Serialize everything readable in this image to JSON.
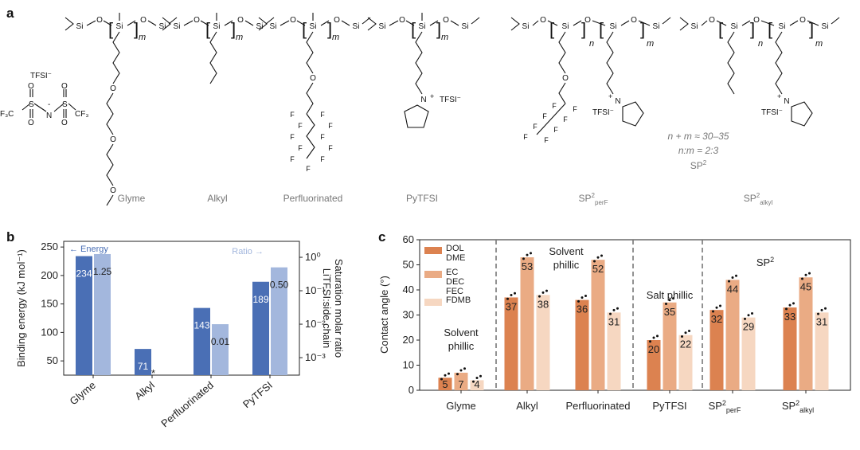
{
  "panel_a": {
    "letter": "a",
    "anion_label": "TFSI⁻",
    "anion_cf3_left": "F₃C",
    "anion_cf3_right": "CF₃",
    "anion_s": "S",
    "anion_n": "N",
    "anion_o": "O",
    "anion_minus": "-",
    "atom_si": "Si",
    "atom_o": "O",
    "atom_f": "F",
    "atom_n": "N",
    "plus": "+",
    "tfsi": "TFSI⁻",
    "sub_m": "m",
    "sub_n": "n",
    "structures": [
      "Glyme",
      "Alkyl",
      "Perfluorinated",
      "PyTFSI"
    ],
    "copolymer_perF_base": "SP",
    "copolymer_perF_sup": "2",
    "copolymer_perF_sub": "perF",
    "copolymer_alkyl_base": "SP",
    "copolymer_alkyl_sup": "2",
    "copolymer_alkyl_sub": "alkyl",
    "note_line1": "n + m ≈ 30–35",
    "note_line2": "n:m = 2:3",
    "note_line3_base": "SP",
    "note_line3_sup": "2"
  },
  "chart_data": [
    {
      "panel": "b",
      "type": "bar",
      "categories": [
        "Glyme",
        "Alkyl",
        "Perfluorinated",
        "PyTFSI"
      ],
      "ylabel": "Binding energy (kJ mol⁻¹)",
      "ylabel_right_line1": "Saturation molar ratio",
      "ylabel_right_line2": "LiTFSI:side chain",
      "ylim": [
        25,
        260
      ],
      "yticks": [
        "50",
        "100",
        "150",
        "200",
        "250"
      ],
      "y2_scale": "log",
      "y2lim": [
        0.0003,
        3.0
      ],
      "y2ticks": [
        "10⁻³",
        "10⁻²",
        "10⁻¹",
        "10⁰"
      ],
      "energy_arrow": "← Energy",
      "ratio_arrow": "Ratio →",
      "star": "*",
      "series": [
        {
          "name": "Energy",
          "axis": "left",
          "color": "#4a6fb5",
          "values": [
            234,
            71,
            143,
            189
          ],
          "labels": [
            "234",
            "71",
            "143",
            "189"
          ]
        },
        {
          "name": "Ratio",
          "axis": "right",
          "color": "#a3b7dd",
          "values": [
            1.25,
            null,
            0.01,
            0.5
          ],
          "labels": [
            "1.25",
            "",
            "0.01",
            "0.50"
          ]
        }
      ]
    },
    {
      "panel": "c",
      "type": "bar",
      "categories": [
        "Glyme",
        "Alkyl",
        "Perfluorinated",
        "PyTFSI",
        "SP2perF",
        "SP2alkyl"
      ],
      "tick_sp_base": "SP",
      "tick_sp_sup": "2",
      "tick_sub_perF": "perF",
      "tick_sub_alkyl": "alkyl",
      "ylabel": "Contact angle (°)",
      "ylim": [
        0,
        60
      ],
      "yticks": [
        "0",
        "10",
        "20",
        "30",
        "40",
        "50",
        "60"
      ],
      "annotations": [
        "Solvent",
        "phillic",
        "Solvent",
        "phillic",
        "Salt phillic",
        "SP",
        "2"
      ],
      "series": [
        {
          "name_lines": [
            "DOL",
            "DME"
          ],
          "color": "#dc8250",
          "values": [
            5,
            37,
            36,
            20,
            32,
            33
          ],
          "labels": [
            "5",
            "37",
            "36",
            "20",
            "32",
            "33"
          ]
        },
        {
          "name_lines": [
            "EC",
            "DEC",
            "FEC"
          ],
          "color": "#eaab84",
          "values": [
            7,
            53,
            52,
            35,
            44,
            45
          ],
          "labels": [
            "7",
            "53",
            "52",
            "35",
            "44",
            "45"
          ]
        },
        {
          "name_lines": [
            "FDMB"
          ],
          "color": "#f6d7c1",
          "values": [
            4,
            38,
            31,
            22,
            29,
            31
          ],
          "labels": [
            "4",
            "38",
            "31",
            "22",
            "29",
            "31"
          ]
        }
      ]
    }
  ]
}
